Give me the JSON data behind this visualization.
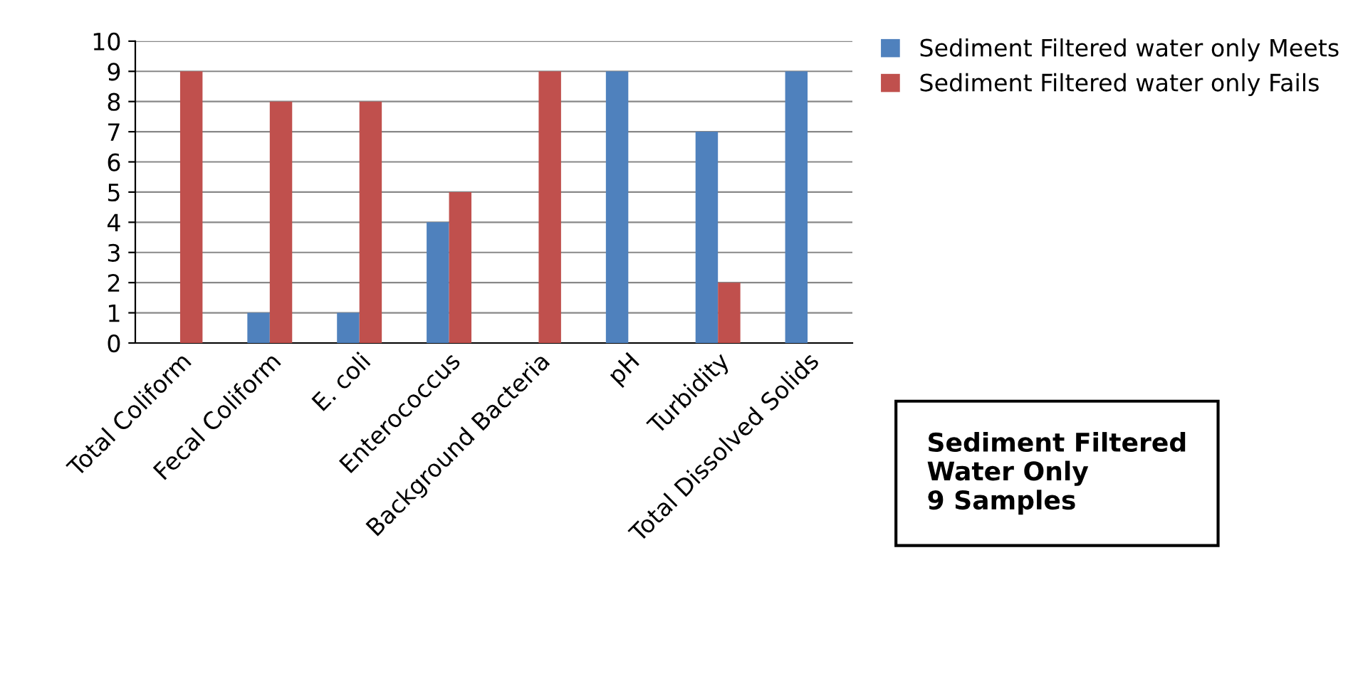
{
  "chart_data": {
    "type": "bar",
    "categories": [
      "Total Coliform",
      "Fecal Coliform",
      "E. coli",
      "Enterococcus",
      "Background Bacteria",
      "pH",
      "Turbidity",
      "Total Dissolved Solids"
    ],
    "series": [
      {
        "name": "Sediment Filtered water only Meets",
        "color": "#4f81bd",
        "values": [
          0,
          1,
          1,
          4,
          0,
          9,
          7,
          9
        ]
      },
      {
        "name": "Sediment Filtered water only Fails",
        "color": "#c0504d",
        "values": [
          9,
          8,
          8,
          5,
          9,
          0,
          2,
          0
        ]
      }
    ],
    "ylim": [
      0,
      10
    ],
    "yticks": [
      0,
      1,
      2,
      3,
      4,
      5,
      6,
      7,
      8,
      9,
      10
    ],
    "grid": "y",
    "legend": "top right",
    "annotations": [
      "Sediment Filtered\nWater Only\n9 Samples"
    ]
  }
}
